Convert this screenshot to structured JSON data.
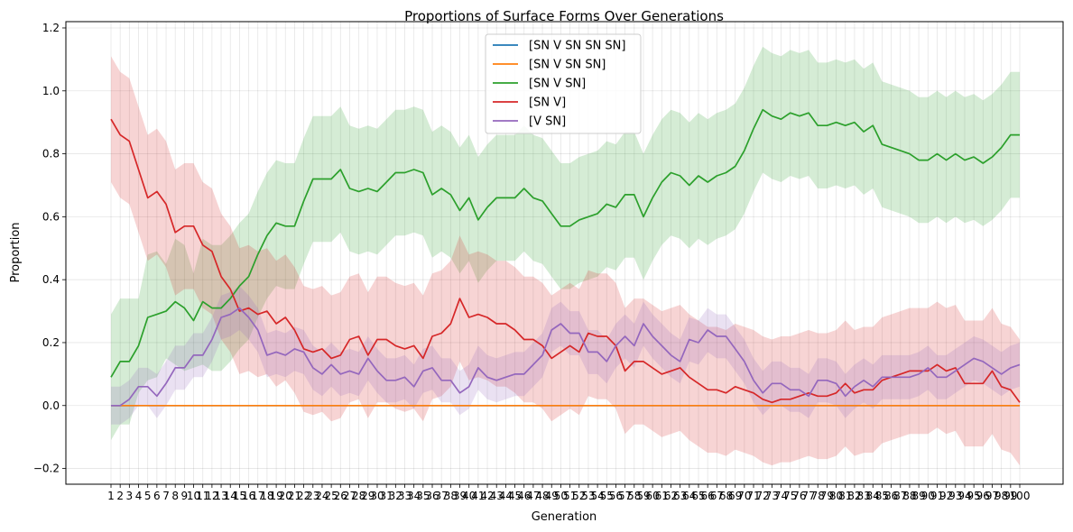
{
  "chart_data": {
    "type": "line",
    "title": "Proportions of Surface Forms Over Generations",
    "xlabel": "Generation",
    "ylabel": "Proportion",
    "ylim": [
      -0.25,
      1.22
    ],
    "yticks": [
      -0.2,
      0.0,
      0.2,
      0.4,
      0.6,
      0.8,
      1.0,
      1.2
    ],
    "ytick_labels": [
      "−0.2",
      "0.0",
      "0.2",
      "0.4",
      "0.6",
      "0.8",
      "1.0",
      "1.2"
    ],
    "grid": true,
    "legend_position": "top-center",
    "x_start": 1,
    "x_end": 100,
    "series": [
      {
        "name": "[SN V SN SN SN]",
        "color": "#1f77b4",
        "values": [
          0,
          0,
          0,
          0,
          0,
          0,
          0,
          0,
          0,
          0,
          0,
          0,
          0,
          0,
          0,
          0,
          0,
          0,
          0,
          0,
          0,
          0,
          0,
          0,
          0,
          0,
          0,
          0,
          0,
          0,
          0,
          0,
          0,
          0,
          0,
          0,
          0,
          0,
          0,
          0,
          0,
          0,
          0,
          0,
          0,
          0,
          0,
          0,
          0,
          0,
          0,
          0,
          0,
          0,
          0,
          0,
          0,
          0,
          0,
          0,
          0,
          0,
          0,
          0,
          0,
          0,
          0,
          0,
          0,
          0,
          0,
          0,
          0,
          0,
          0,
          0,
          0,
          0,
          0,
          0,
          0,
          0,
          0,
          0,
          0,
          0,
          0,
          0,
          0,
          0,
          0,
          0,
          0,
          0,
          0,
          0,
          0,
          0,
          0,
          0
        ],
        "spread": [
          0,
          0,
          0,
          0,
          0,
          0,
          0,
          0,
          0,
          0,
          0,
          0,
          0,
          0,
          0,
          0,
          0,
          0,
          0,
          0,
          0,
          0,
          0,
          0,
          0,
          0,
          0,
          0,
          0,
          0,
          0,
          0,
          0,
          0,
          0,
          0,
          0,
          0,
          0,
          0,
          0,
          0,
          0,
          0,
          0,
          0,
          0,
          0,
          0,
          0,
          0,
          0,
          0,
          0,
          0,
          0,
          0,
          0,
          0,
          0,
          0,
          0,
          0,
          0,
          0,
          0,
          0,
          0,
          0,
          0,
          0,
          0,
          0,
          0,
          0,
          0,
          0,
          0,
          0,
          0,
          0,
          0,
          0,
          0,
          0,
          0,
          0,
          0,
          0,
          0,
          0,
          0,
          0,
          0,
          0,
          0,
          0,
          0,
          0,
          0
        ]
      },
      {
        "name": "[SN V SN SN]",
        "color": "#ff7f0e",
        "values": [
          0,
          0,
          0,
          0,
          0,
          0,
          0,
          0,
          0,
          0,
          0,
          0,
          0,
          0,
          0,
          0,
          0,
          0,
          0,
          0,
          0,
          0,
          0,
          0,
          0,
          0,
          0,
          0,
          0,
          0,
          0,
          0,
          0,
          0,
          0,
          0,
          0,
          0,
          0,
          0,
          0,
          0,
          0,
          0,
          0,
          0,
          0,
          0,
          0,
          0,
          0,
          0,
          0,
          0,
          0,
          0,
          0,
          0,
          0,
          0,
          0,
          0,
          0,
          0,
          0,
          0,
          0,
          0,
          0,
          0,
          0,
          0,
          0,
          0,
          0,
          0,
          0,
          0,
          0,
          0,
          0,
          0,
          0,
          0,
          0,
          0,
          0,
          0,
          0,
          0,
          0,
          0,
          0,
          0,
          0,
          0,
          0,
          0,
          0,
          0
        ],
        "spread": [
          0,
          0,
          0,
          0,
          0,
          0,
          0,
          0,
          0,
          0,
          0,
          0,
          0,
          0,
          0,
          0,
          0,
          0,
          0,
          0,
          0,
          0,
          0,
          0,
          0,
          0,
          0,
          0,
          0,
          0,
          0,
          0,
          0,
          0,
          0,
          0,
          0,
          0,
          0,
          0,
          0,
          0,
          0,
          0,
          0,
          0,
          0,
          0,
          0,
          0,
          0,
          0,
          0,
          0,
          0,
          0,
          0,
          0,
          0,
          0,
          0,
          0,
          0,
          0,
          0,
          0,
          0,
          0,
          0,
          0,
          0,
          0,
          0,
          0,
          0,
          0,
          0,
          0,
          0,
          0,
          0,
          0,
          0,
          0,
          0,
          0,
          0,
          0,
          0,
          0,
          0,
          0,
          0,
          0,
          0,
          0,
          0,
          0,
          0,
          0
        ]
      },
      {
        "name": "[SN V SN]",
        "color": "#2ca02c",
        "values": [
          0.09,
          0.14,
          0.14,
          0.19,
          0.28,
          0.29,
          0.3,
          0.33,
          0.31,
          0.27,
          0.33,
          0.31,
          0.31,
          0.34,
          0.38,
          0.41,
          0.48,
          0.54,
          0.58,
          0.57,
          0.57,
          0.65,
          0.72,
          0.72,
          0.72,
          0.75,
          0.69,
          0.68,
          0.69,
          0.68,
          0.71,
          0.74,
          0.74,
          0.75,
          0.74,
          0.67,
          0.69,
          0.67,
          0.62,
          0.66,
          0.59,
          0.63,
          0.66,
          0.66,
          0.66,
          0.69,
          0.66,
          0.65,
          0.61,
          0.57,
          0.57,
          0.59,
          0.6,
          0.61,
          0.64,
          0.63,
          0.67,
          0.67,
          0.6,
          0.66,
          0.71,
          0.74,
          0.73,
          0.7,
          0.73,
          0.71,
          0.73,
          0.74,
          0.76,
          0.81,
          0.88,
          0.94,
          0.92,
          0.91,
          0.93,
          0.92,
          0.93,
          0.89,
          0.89,
          0.9,
          0.89,
          0.9,
          0.87,
          0.89,
          0.83,
          0.82,
          0.81,
          0.8,
          0.78,
          0.78,
          0.8,
          0.78,
          0.8,
          0.78,
          0.79,
          0.77,
          0.79,
          0.82,
          0.86,
          0.86
        ],
        "spread": [
          0.2,
          0.2,
          0.2,
          0.15,
          0.2,
          0.2,
          0.15,
          0.2,
          0.2,
          0.15,
          0.2,
          0.2,
          0.2,
          0.2,
          0.2,
          0.2,
          0.2,
          0.2,
          0.2,
          0.2,
          0.2,
          0.2,
          0.2,
          0.2,
          0.2,
          0.2,
          0.2,
          0.2,
          0.2,
          0.2,
          0.2,
          0.2,
          0.2,
          0.2,
          0.2,
          0.2,
          0.2,
          0.2,
          0.2,
          0.2,
          0.2,
          0.2,
          0.2,
          0.2,
          0.2,
          0.2,
          0.2,
          0.2,
          0.2,
          0.2,
          0.2,
          0.2,
          0.2,
          0.2,
          0.2,
          0.2,
          0.2,
          0.2,
          0.2,
          0.2,
          0.2,
          0.2,
          0.2,
          0.2,
          0.2,
          0.2,
          0.2,
          0.2,
          0.2,
          0.2,
          0.2,
          0.2,
          0.2,
          0.2,
          0.2,
          0.2,
          0.2,
          0.2,
          0.2,
          0.2,
          0.2,
          0.2,
          0.2,
          0.2,
          0.2,
          0.2,
          0.2,
          0.2,
          0.2,
          0.2,
          0.2,
          0.2,
          0.2,
          0.2,
          0.2,
          0.2,
          0.2,
          0.2,
          0.2,
          0.2
        ]
      },
      {
        "name": "[SN V]",
        "color": "#d62728",
        "values": [
          0.91,
          0.86,
          0.84,
          0.75,
          0.66,
          0.68,
          0.64,
          0.55,
          0.57,
          0.57,
          0.51,
          0.49,
          0.41,
          0.37,
          0.3,
          0.31,
          0.29,
          0.3,
          0.26,
          0.28,
          0.24,
          0.18,
          0.17,
          0.18,
          0.15,
          0.16,
          0.21,
          0.22,
          0.16,
          0.21,
          0.21,
          0.19,
          0.18,
          0.19,
          0.15,
          0.22,
          0.23,
          0.26,
          0.34,
          0.28,
          0.29,
          0.28,
          0.26,
          0.26,
          0.24,
          0.21,
          0.21,
          0.19,
          0.15,
          0.17,
          0.19,
          0.17,
          0.23,
          0.22,
          0.22,
          0.19,
          0.11,
          0.14,
          0.14,
          0.12,
          0.1,
          0.11,
          0.12,
          0.09,
          0.07,
          0.05,
          0.05,
          0.04,
          0.06,
          0.05,
          0.04,
          0.02,
          0.01,
          0.02,
          0.02,
          0.03,
          0.04,
          0.03,
          0.03,
          0.04,
          0.07,
          0.04,
          0.05,
          0.05,
          0.08,
          0.09,
          0.1,
          0.11,
          0.11,
          0.11,
          0.13,
          0.11,
          0.12,
          0.07,
          0.07,
          0.07,
          0.11,
          0.06,
          0.05,
          0.01
        ],
        "spread": [
          0.2,
          0.2,
          0.2,
          0.2,
          0.2,
          0.2,
          0.2,
          0.2,
          0.2,
          0.2,
          0.2,
          0.2,
          0.2,
          0.2,
          0.2,
          0.2,
          0.2,
          0.2,
          0.2,
          0.2,
          0.2,
          0.2,
          0.2,
          0.2,
          0.2,
          0.2,
          0.2,
          0.2,
          0.2,
          0.2,
          0.2,
          0.2,
          0.2,
          0.2,
          0.2,
          0.2,
          0.2,
          0.2,
          0.2,
          0.2,
          0.2,
          0.2,
          0.2,
          0.2,
          0.2,
          0.2,
          0.2,
          0.2,
          0.2,
          0.2,
          0.2,
          0.2,
          0.2,
          0.2,
          0.2,
          0.2,
          0.2,
          0.2,
          0.2,
          0.2,
          0.2,
          0.2,
          0.2,
          0.2,
          0.2,
          0.2,
          0.2,
          0.2,
          0.2,
          0.2,
          0.2,
          0.2,
          0.2,
          0.2,
          0.2,
          0.2,
          0.2,
          0.2,
          0.2,
          0.2,
          0.2,
          0.2,
          0.2,
          0.2,
          0.2,
          0.2,
          0.2,
          0.2,
          0.2,
          0.2,
          0.2,
          0.2,
          0.2,
          0.2,
          0.2,
          0.2,
          0.2,
          0.2,
          0.2,
          0.2
        ]
      },
      {
        "name": "[V SN]",
        "color": "#9467bd",
        "values": [
          0,
          0,
          0.02,
          0.06,
          0.06,
          0.03,
          0.07,
          0.12,
          0.12,
          0.16,
          0.16,
          0.21,
          0.28,
          0.29,
          0.31,
          0.28,
          0.24,
          0.16,
          0.17,
          0.16,
          0.18,
          0.17,
          0.12,
          0.1,
          0.13,
          0.1,
          0.11,
          0.1,
          0.15,
          0.11,
          0.08,
          0.08,
          0.09,
          0.06,
          0.11,
          0.12,
          0.08,
          0.08,
          0.04,
          0.06,
          0.12,
          0.09,
          0.08,
          0.09,
          0.1,
          0.1,
          0.13,
          0.16,
          0.24,
          0.26,
          0.23,
          0.23,
          0.17,
          0.17,
          0.14,
          0.19,
          0.22,
          0.19,
          0.26,
          0.22,
          0.19,
          0.16,
          0.14,
          0.21,
          0.2,
          0.24,
          0.22,
          0.22,
          0.18,
          0.14,
          0.08,
          0.04,
          0.07,
          0.07,
          0.05,
          0.05,
          0.03,
          0.08,
          0.08,
          0.07,
          0.03,
          0.06,
          0.08,
          0.06,
          0.09,
          0.09,
          0.09,
          0.09,
          0.1,
          0.12,
          0.09,
          0.09,
          0.11,
          0.13,
          0.15,
          0.14,
          0.12,
          0.1,
          0.12,
          0.13
        ],
        "spread": [
          0.06,
          0.06,
          0.06,
          0.06,
          0.06,
          0.07,
          0.07,
          0.07,
          0.07,
          0.07,
          0.07,
          0.07,
          0.07,
          0.07,
          0.07,
          0.07,
          0.07,
          0.07,
          0.07,
          0.07,
          0.07,
          0.07,
          0.07,
          0.07,
          0.07,
          0.07,
          0.07,
          0.07,
          0.07,
          0.07,
          0.07,
          0.07,
          0.07,
          0.07,
          0.07,
          0.07,
          0.07,
          0.07,
          0.07,
          0.07,
          0.07,
          0.07,
          0.07,
          0.07,
          0.07,
          0.07,
          0.07,
          0.07,
          0.07,
          0.07,
          0.07,
          0.07,
          0.07,
          0.07,
          0.07,
          0.07,
          0.07,
          0.07,
          0.07,
          0.07,
          0.07,
          0.07,
          0.07,
          0.07,
          0.07,
          0.07,
          0.07,
          0.07,
          0.07,
          0.07,
          0.07,
          0.07,
          0.07,
          0.07,
          0.07,
          0.07,
          0.07,
          0.07,
          0.07,
          0.07,
          0.07,
          0.07,
          0.07,
          0.07,
          0.07,
          0.07,
          0.07,
          0.07,
          0.07,
          0.07,
          0.07,
          0.07,
          0.07,
          0.07,
          0.07,
          0.07,
          0.07,
          0.07,
          0.07,
          0.07
        ]
      }
    ]
  }
}
